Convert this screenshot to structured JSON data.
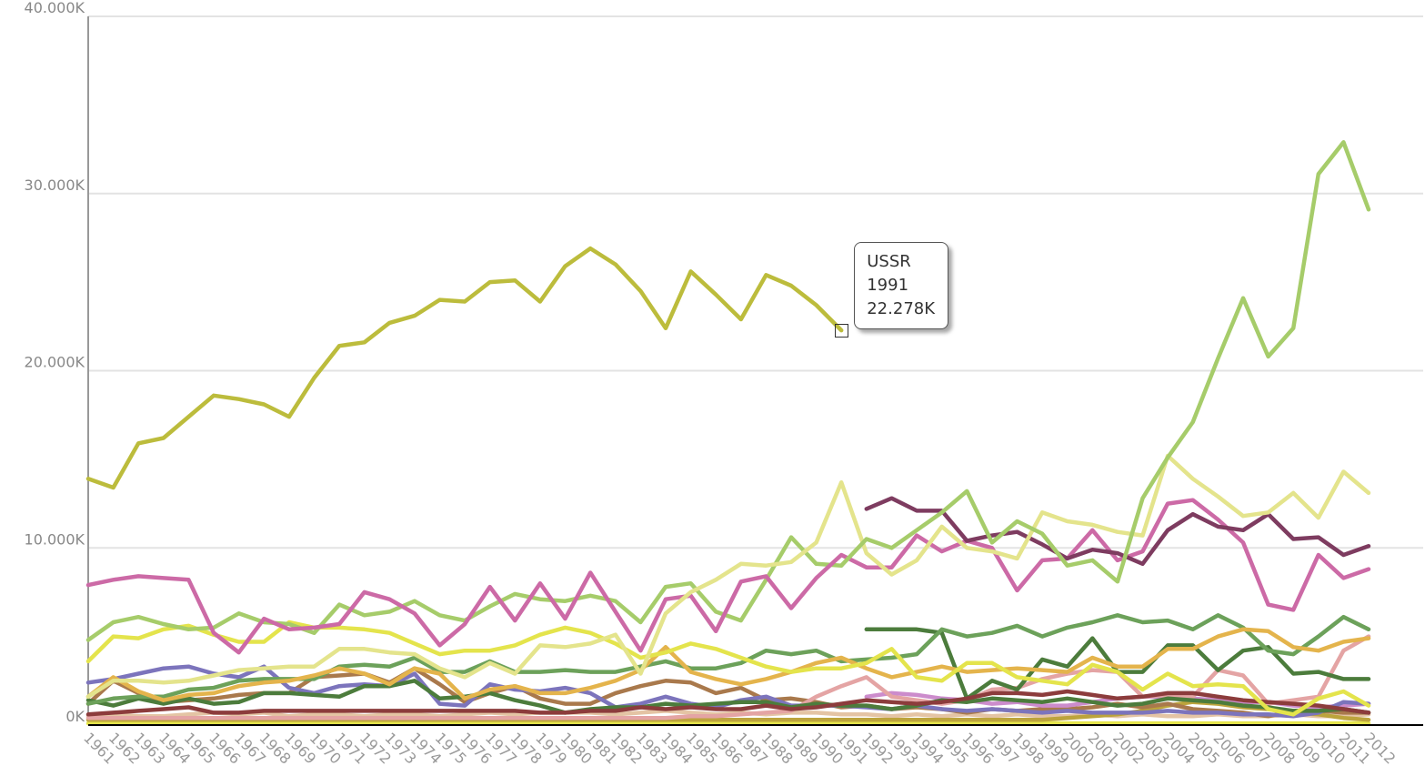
{
  "chart_data": {
    "type": "line",
    "title": "",
    "xlabel": "",
    "ylabel": "",
    "ylim": [
      0,
      40000
    ],
    "y_ticks": [
      {
        "value": 0,
        "label": "0K"
      },
      {
        "value": 10000,
        "label": "10.000K"
      },
      {
        "value": 20000,
        "label": "20.000K"
      },
      {
        "value": 30000,
        "label": "30.000K"
      },
      {
        "value": 40000,
        "label": "40.000K"
      }
    ],
    "x": [
      "1961",
      "1962",
      "1963",
      "1964",
      "1965",
      "1966",
      "1967",
      "1968",
      "1969",
      "1970",
      "1971",
      "1972",
      "1973",
      "1974",
      "1975",
      "1976",
      "1977",
      "1978",
      "1979",
      "1980",
      "1981",
      "1982",
      "1983",
      "1984",
      "1985",
      "1986",
      "1987",
      "1988",
      "1989",
      "1990",
      "1991",
      "1992",
      "1993",
      "1994",
      "1995",
      "1996",
      "1997",
      "1998",
      "1999",
      "2000",
      "2001",
      "2002",
      "2003",
      "2004",
      "2005",
      "2006",
      "2007",
      "2008",
      "2009",
      "2010",
      "2011",
      "2012"
    ],
    "grid": true,
    "legend": "none",
    "series": [
      {
        "name": "USSR",
        "color": "#bcbc3c",
        "values": [
          13900,
          13400,
          15900,
          16200,
          17400,
          18600,
          18400,
          18100,
          17400,
          19600,
          21400,
          21600,
          22700,
          23100,
          24000,
          23900,
          25000,
          25100,
          23900,
          25900,
          26900,
          26000,
          24500,
          22400,
          25600,
          24300,
          22900,
          25400,
          24800,
          23700,
          22278,
          null,
          null,
          null,
          null,
          null,
          null,
          null,
          null,
          null,
          null,
          null,
          null,
          null,
          null,
          null,
          null,
          null,
          null,
          null,
          null,
          null
        ]
      },
      {
        "color": "#a6cc6a",
        "values": [
          null,
          null,
          null,
          null,
          null,
          null,
          null,
          null,
          null,
          null,
          null,
          null,
          null,
          null,
          null,
          null,
          null,
          null,
          null,
          null,
          null,
          null,
          null,
          null,
          null,
          null,
          null,
          null,
          null,
          null,
          9000,
          10500,
          10000,
          11000,
          12000,
          13200,
          10300,
          11500,
          10800,
          9000,
          9300,
          8100,
          12800,
          15100,
          17100,
          20700,
          24100,
          20800,
          22400,
          31100,
          32900,
          29100
        ]
      },
      {
        "color": "#e4e48c",
        "values": [
          1600,
          2500,
          2500,
          2400,
          2500,
          2800,
          3100,
          3200,
          3300,
          3300,
          4300,
          4300,
          4100,
          4000,
          3200,
          2700,
          3500,
          2900,
          4500,
          4400,
          4600,
          5100,
          2900,
          6300,
          7500,
          8200,
          9100,
          9000,
          9200,
          10300,
          13700,
          9700,
          8500,
          9300,
          11200,
          10000,
          9800,
          9400,
          12000,
          11500,
          11300,
          10900,
          10700,
          15200,
          13900,
          12900,
          11800,
          12000,
          13100,
          11700,
          14300,
          13100
        ]
      },
      {
        "color": "#7e3c60",
        "values": [
          null,
          null,
          null,
          null,
          null,
          null,
          null,
          null,
          null,
          null,
          null,
          null,
          null,
          null,
          null,
          null,
          null,
          null,
          null,
          null,
          null,
          null,
          null,
          null,
          null,
          null,
          null,
          null,
          null,
          null,
          null,
          12200,
          12800,
          12100,
          12100,
          10400,
          10700,
          10900,
          10200,
          9400,
          9900,
          9700,
          9100,
          11000,
          11900,
          11200,
          11000,
          11900,
          10500,
          10600,
          9600,
          10100
        ]
      },
      {
        "color": "#cc6aa6",
        "values": [
          7900,
          8200,
          8400,
          8300,
          8200,
          5200,
          4100,
          6000,
          5400,
          5500,
          5700,
          7500,
          7100,
          6300,
          4500,
          5700,
          7800,
          5900,
          8000,
          6000,
          8600,
          6400,
          4200,
          7100,
          7300,
          5300,
          8100,
          8400,
          6600,
          8300,
          9600,
          8900,
          8900,
          10700,
          9800,
          10400,
          10000,
          7600,
          9300,
          9400,
          11000,
          9300,
          9800,
          12500,
          12700,
          11600,
          10300,
          6800,
          6500,
          9600,
          8300,
          8800
        ]
      },
      {
        "color": "#a6cc6a",
        "values": [
          4800,
          5800,
          6100,
          5700,
          5400,
          5500,
          6300,
          5800,
          5700,
          5200,
          6800,
          6200,
          6400,
          7000,
          6200,
          5900,
          6700,
          7400,
          7100,
          7000,
          7300,
          7000,
          5800,
          7800,
          8000,
          6400,
          5900,
          8200,
          10600,
          9100,
          9000,
          null,
          null,
          null,
          null,
          null,
          null,
          null,
          null,
          null,
          null,
          null,
          null,
          null,
          null,
          null,
          null,
          null,
          null,
          null,
          null,
          null
        ]
      },
      {
        "color": "#e4e44c",
        "values": [
          3600,
          5000,
          4900,
          5400,
          5600,
          5100,
          4700,
          4700,
          5800,
          5500,
          5500,
          5400,
          5200,
          4600,
          4000,
          4200,
          4200,
          4500,
          5100,
          5500,
          5200,
          4600,
          3800,
          4100,
          4600,
          4300,
          3800,
          3300,
          3000,
          3200,
          3200,
          3500,
          4300,
          2700,
          2500,
          3500,
          3500,
          2700,
          2500,
          2300,
          3400,
          3000,
          2000,
          2900,
          2200,
          2300,
          2200,
          900,
          600,
          1500,
          1900,
          1100
        ]
      },
      {
        "color": "#e4b44c",
        "values": [
          1600,
          2700,
          1900,
          1400,
          1700,
          1800,
          2200,
          2400,
          2500,
          2800,
          3200,
          2900,
          2300,
          3200,
          2900,
          1500,
          2000,
          2200,
          1800,
          1800,
          2100,
          2500,
          3100,
          4400,
          3000,
          2600,
          2300,
          2600,
          3000,
          3500,
          3800,
          3200,
          2700,
          3000,
          3300,
          3000,
          3100,
          3200,
          3100,
          3000,
          3800,
          3300,
          3300,
          4300,
          4300,
          5000,
          5400,
          5300,
          4400,
          4200,
          4700,
          4900
        ]
      },
      {
        "color": "#6ca15a",
        "values": [
          1200,
          1500,
          1600,
          1600,
          2000,
          2100,
          2500,
          2600,
          2600,
          2600,
          3300,
          3400,
          3300,
          3800,
          3000,
          3000,
          3600,
          3000,
          3000,
          3100,
          3000,
          3000,
          3300,
          3600,
          3200,
          3200,
          3500,
          4200,
          4000,
          4200,
          3600,
          3700,
          3800,
          4000,
          5400,
          5000,
          5200,
          5600,
          5000,
          5500,
          5800,
          6200,
          5800,
          5900,
          5400,
          6200,
          5500,
          4200,
          4000,
          5000,
          6100,
          5400
        ]
      },
      {
        "color": "#8c3c3c",
        "values": [
          600,
          700,
          800,
          900,
          1000,
          700,
          700,
          800,
          800,
          800,
          800,
          800,
          800,
          800,
          800,
          800,
          800,
          800,
          700,
          700,
          800,
          800,
          1000,
          900,
          1000,
          900,
          900,
          1100,
          900,
          1000,
          1200,
          1400,
          1300,
          1200,
          1300,
          1500,
          1800,
          1800,
          1700,
          1900,
          1700,
          1500,
          1600,
          1800,
          1800,
          1600,
          1400,
          1300,
          1200,
          1100,
          900,
          700
        ]
      },
      {
        "color": "#4c7c3c",
        "values": [
          null,
          null,
          null,
          null,
          null,
          null,
          null,
          null,
          null,
          null,
          null,
          null,
          null,
          null,
          null,
          null,
          null,
          null,
          null,
          null,
          null,
          null,
          null,
          null,
          null,
          null,
          null,
          null,
          null,
          null,
          null,
          5400,
          5400,
          5400,
          5200,
          1500,
          2500,
          2000,
          3700,
          3300,
          4900,
          3000,
          3000,
          4500,
          4500,
          3100,
          4200,
          4400,
          2900,
          3000,
          2600,
          2600
        ]
      },
      {
        "color": "#4c7c3c",
        "values": [
          1400,
          1100,
          1500,
          1200,
          1500,
          1200,
          1300,
          1800,
          1800,
          1700,
          1600,
          2200,
          2200,
          2500,
          1500,
          1600,
          1800,
          1400,
          1100,
          700,
          900,
          1000,
          1000,
          1200,
          1100,
          1200,
          1300,
          1300,
          1000,
          1200,
          1100,
          1100,
          900,
          1100,
          1400,
          1300,
          1500,
          1400,
          1300,
          1500,
          1300,
          1100,
          1200,
          1500,
          1400,
          1300,
          1100,
          1000,
          800,
          800,
          900,
          700
        ]
      },
      {
        "color": "#7c74bc",
        "values": [
          2400,
          2600,
          2900,
          3200,
          3300,
          2900,
          2700,
          3300,
          2100,
          1800,
          2200,
          2300,
          2200,
          2900,
          1200,
          1100,
          2300,
          2000,
          1900,
          2100,
          1800,
          1000,
          1200,
          1600,
          1200,
          1000,
          1400,
          1600,
          1100,
          1100,
          1100,
          1000,
          900,
          1100,
          900,
          800,
          900,
          800,
          700,
          800,
          700,
          700,
          700,
          800,
          700,
          700,
          600,
          600,
          500,
          700,
          1300,
          1200
        ]
      },
      {
        "color": "#e4a4a4",
        "values": [
          400,
          400,
          400,
          400,
          400,
          400,
          400,
          400,
          400,
          400,
          400,
          400,
          400,
          400,
          400,
          400,
          400,
          400,
          400,
          400,
          400,
          400,
          400,
          400,
          500,
          500,
          600,
          700,
          800,
          1600,
          2200,
          2700,
          1600,
          1400,
          1200,
          1400,
          2000,
          2100,
          2600,
          2900,
          3100,
          3000,
          1600,
          1700,
          1600,
          3100,
          2800,
          1200,
          1400,
          1600,
          4200,
          5000
        ]
      },
      {
        "color": "#cc8ccc",
        "values": [
          null,
          null,
          null,
          null,
          null,
          null,
          null,
          null,
          null,
          null,
          null,
          null,
          null,
          null,
          null,
          null,
          null,
          null,
          null,
          null,
          null,
          null,
          null,
          null,
          null,
          null,
          null,
          null,
          null,
          null,
          null,
          1600,
          1800,
          1700,
          1500,
          1400,
          1200,
          1300,
          1100,
          1100,
          1300,
          1500,
          1600,
          1600,
          1500,
          1400,
          1300,
          1300,
          1100,
          1000,
          1100,
          1200
        ]
      },
      {
        "color": "#a9794c",
        "values": [
          1200,
          2500,
          1800,
          1300,
          1400,
          1500,
          1700,
          1800,
          1800,
          2700,
          2800,
          2900,
          2400,
          3200,
          2300,
          1300,
          1800,
          2200,
          1500,
          1200,
          1200,
          1800,
          2200,
          2500,
          2400,
          1800,
          2100,
          1400,
          1500,
          1300,
          1000,
          1100,
          900,
          1000,
          900,
          700,
          900,
          800,
          900,
          900,
          1000,
          1200,
          1000,
          1200,
          900,
          800,
          700,
          500,
          800,
          800,
          700,
          700
        ]
      },
      {
        "color": "#bca43c",
        "values": [
          300,
          300,
          300,
          300,
          300,
          300,
          300,
          300,
          300,
          300,
          300,
          300,
          300,
          300,
          300,
          300,
          300,
          300,
          300,
          300,
          300,
          300,
          300,
          300,
          300,
          300,
          300,
          300,
          300,
          300,
          300,
          300,
          300,
          300,
          300,
          300,
          300,
          300,
          300,
          400,
          500,
          600,
          800,
          1100,
          1300,
          1200,
          1000,
          900,
          700,
          600,
          400,
          300
        ]
      },
      {
        "color": "#e4e44c",
        "values": [
          100,
          100,
          100,
          100,
          100,
          100,
          100,
          100,
          100,
          100,
          100,
          100,
          100,
          100,
          100,
          100,
          100,
          100,
          100,
          100,
          100,
          100,
          100,
          100,
          100,
          100,
          100,
          100,
          100,
          100,
          100,
          100,
          100,
          100,
          100,
          100,
          100,
          100,
          100,
          100,
          100,
          100,
          100,
          100,
          100,
          100,
          100,
          100,
          100,
          100,
          100,
          100
        ]
      },
      {
        "color": "#e4c4a4",
        "values": [
          500,
          600,
          500,
          500,
          600,
          700,
          600,
          700,
          500,
          600,
          600,
          500,
          600,
          600,
          500,
          600,
          700,
          600,
          700,
          700,
          700,
          600,
          700,
          800,
          700,
          600,
          700,
          600,
          700,
          700,
          600,
          600,
          500,
          600,
          500,
          600,
          500,
          600,
          500,
          500,
          600,
          500,
          600,
          500,
          500,
          600,
          500,
          500,
          600,
          500,
          500,
          600
        ]
      }
    ]
  },
  "tooltip": {
    "series_name": "USSR",
    "year": "1991",
    "value": "22.278K"
  }
}
